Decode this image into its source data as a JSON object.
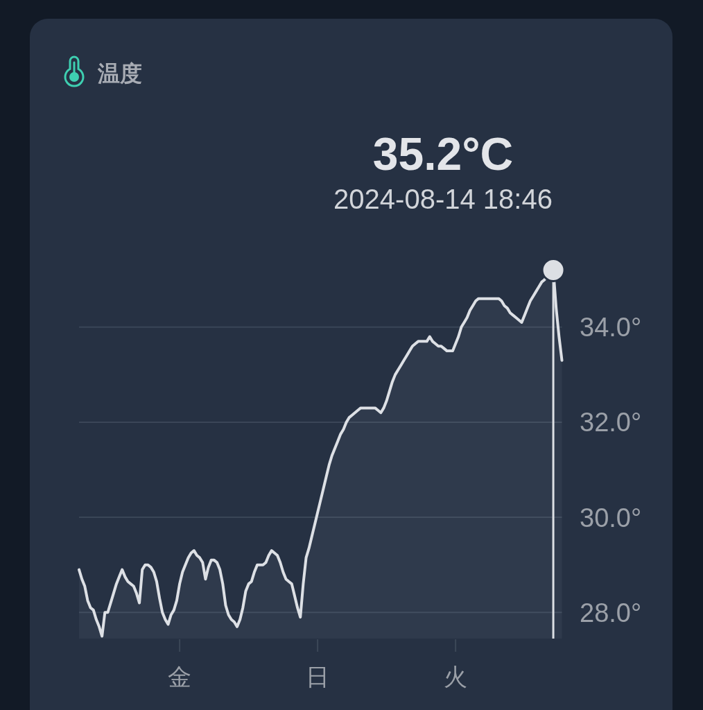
{
  "chart_data": {
    "type": "area",
    "title": "温度",
    "annotations": [
      "35.2°C",
      "2024-08-14 18:46"
    ],
    "categories": [
      null,
      null,
      null,
      null,
      null,
      null,
      null,
      null,
      null,
      null,
      null,
      null,
      null,
      null,
      null,
      null,
      null,
      null,
      null,
      null,
      null,
      null,
      null,
      null,
      null,
      null,
      null,
      null,
      null,
      null,
      null,
      null,
      null,
      null,
      null,
      "金",
      null,
      null,
      null,
      null,
      null,
      null,
      null,
      null,
      null,
      null,
      null,
      null,
      null,
      null,
      null,
      null,
      null,
      null,
      null,
      null,
      null,
      null,
      null,
      null,
      null,
      null,
      null,
      null,
      null,
      null,
      null,
      null,
      null,
      null,
      null,
      null,
      null,
      null,
      null,
      null,
      null,
      null,
      null,
      null,
      null,
      null,
      null,
      "日",
      null,
      null,
      null,
      null,
      null,
      null,
      null,
      null,
      null,
      null,
      null,
      null,
      null,
      null,
      null,
      null,
      null,
      null,
      null,
      null,
      null,
      null,
      null,
      null,
      null,
      null,
      null,
      null,
      null,
      null,
      null,
      null,
      null,
      null,
      null,
      null,
      null,
      null,
      null,
      null,
      null,
      null,
      null,
      null,
      null,
      null,
      null,
      "火",
      null,
      null,
      null,
      null,
      null,
      null,
      null,
      null,
      null,
      null,
      null,
      null,
      null,
      null,
      null,
      null,
      null,
      null,
      null,
      null,
      null,
      null,
      null,
      null,
      null,
      null,
      null,
      null,
      null,
      null,
      null,
      null,
      null,
      null,
      null,
      null,
      null
    ],
    "series": [
      {
        "color": "#dde0e5",
        "values": [
          28.9,
          28.7,
          28.55,
          28.25,
          28.1,
          28.05,
          27.85,
          27.7,
          27.5,
          28.0,
          28.0,
          28.2,
          28.4,
          28.6,
          28.75,
          28.9,
          28.75,
          28.65,
          28.6,
          28.55,
          28.4,
          28.2,
          28.9,
          29.0,
          29.0,
          28.95,
          28.85,
          28.65,
          28.3,
          28.0,
          27.85,
          27.75,
          27.95,
          28.05,
          28.25,
          28.6,
          28.85,
          29.0,
          29.15,
          29.25,
          29.3,
          29.2,
          29.15,
          29.05,
          28.7,
          28.95,
          29.1,
          29.1,
          29.05,
          28.9,
          28.6,
          28.15,
          27.95,
          27.85,
          27.8,
          27.7,
          27.85,
          28.1,
          28.45,
          28.6,
          28.65,
          28.85,
          29.0,
          29.0,
          29.0,
          29.05,
          29.2,
          29.3,
          29.25,
          29.2,
          29.05,
          28.85,
          28.7,
          28.65,
          28.6,
          28.35,
          28.1,
          27.9,
          28.6,
          29.15,
          29.35,
          29.6,
          29.85,
          30.1,
          30.35,
          30.6,
          30.85,
          31.1,
          31.3,
          31.45,
          31.6,
          31.75,
          31.85,
          32.0,
          32.1,
          32.15,
          32.2,
          32.25,
          32.3,
          32.3,
          32.3,
          32.3,
          32.3,
          32.3,
          32.25,
          32.2,
          32.3,
          32.45,
          32.65,
          32.85,
          33.0,
          33.1,
          33.2,
          33.3,
          33.4,
          33.5,
          33.6,
          33.65,
          33.7,
          33.7,
          33.7,
          33.7,
          33.8,
          33.7,
          33.65,
          33.6,
          33.6,
          33.55,
          33.5,
          33.5,
          33.5,
          33.65,
          33.8,
          34.0,
          34.1,
          34.2,
          34.35,
          34.45,
          34.55,
          34.6,
          34.6,
          34.6,
          34.6,
          34.6,
          34.6,
          34.6,
          34.6,
          34.55,
          34.45,
          34.4,
          34.3,
          34.25,
          34.2,
          34.15,
          34.1,
          34.25,
          34.4,
          34.55,
          34.65,
          34.75,
          34.85,
          34.95,
          35.0,
          35.1,
          35.15,
          35.2,
          34.4,
          33.8,
          33.3
        ]
      },
      {
        "type": "lollipop",
        "color": "#dcdfe4",
        "values": [
          null,
          null,
          null,
          null,
          null,
          null,
          null,
          null,
          null,
          null,
          null,
          null,
          null,
          null,
          null,
          null,
          null,
          null,
          null,
          null,
          null,
          null,
          null,
          null,
          null,
          null,
          null,
          null,
          null,
          null,
          null,
          null,
          null,
          null,
          null,
          null,
          null,
          null,
          null,
          null,
          null,
          null,
          null,
          null,
          null,
          null,
          null,
          null,
          null,
          null,
          null,
          null,
          null,
          null,
          null,
          null,
          null,
          null,
          null,
          null,
          null,
          null,
          null,
          null,
          null,
          null,
          null,
          null,
          null,
          null,
          null,
          null,
          null,
          null,
          null,
          null,
          null,
          null,
          null,
          null,
          null,
          null,
          null,
          null,
          null,
          null,
          null,
          null,
          null,
          null,
          null,
          null,
          null,
          null,
          null,
          null,
          null,
          null,
          null,
          null,
          null,
          null,
          null,
          null,
          null,
          null,
          null,
          null,
          null,
          null,
          null,
          null,
          null,
          null,
          null,
          null,
          null,
          null,
          null,
          null,
          null,
          null,
          null,
          null,
          null,
          null,
          null,
          null,
          null,
          null,
          null,
          null,
          null,
          null,
          null,
          null,
          null,
          null,
          null,
          null,
          null,
          null,
          null,
          null,
          null,
          null,
          null,
          null,
          null,
          null,
          null,
          null,
          null,
          null,
          null,
          null,
          null,
          null,
          null,
          null,
          null,
          null,
          null,
          null,
          null,
          35.2,
          null,
          null,
          null
        ]
      }
    ],
    "ylim": [
      27.45,
      35.2
    ],
    "yticks": [
      {
        "value": 28,
        "label": "28.0°"
      },
      {
        "value": 30,
        "label": "30.0°"
      },
      {
        "value": 32,
        "label": "32.0°"
      },
      {
        "value": 34,
        "label": "34.0°"
      }
    ],
    "grid": "y"
  }
}
